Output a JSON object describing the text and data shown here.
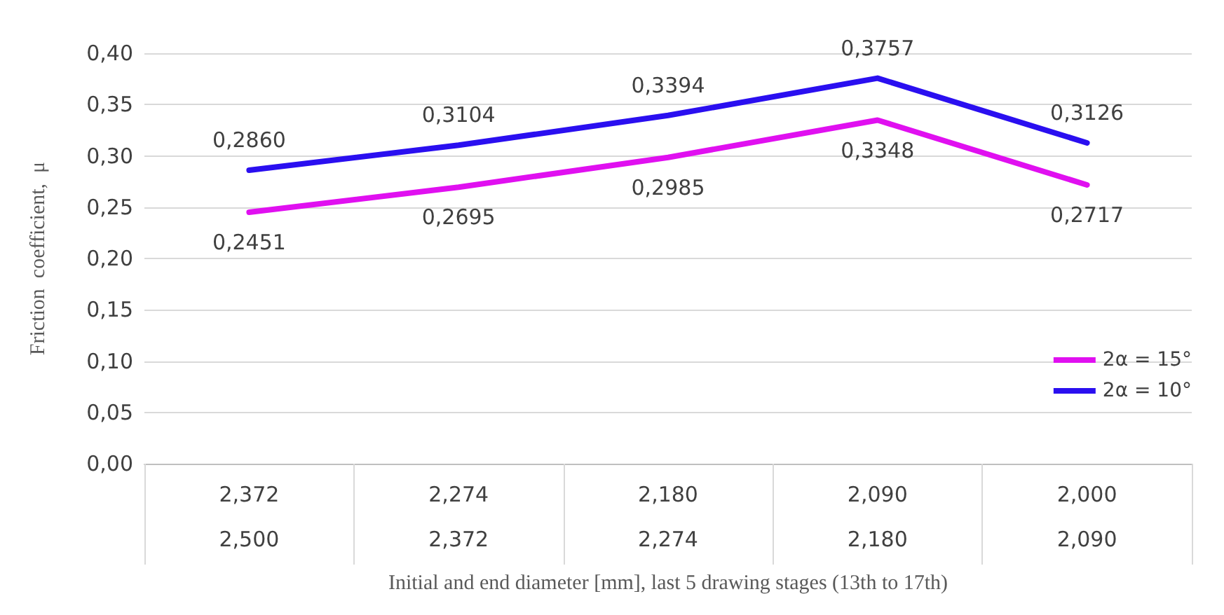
{
  "chart_data": {
    "type": "line",
    "xlabel": "Initial and end diameter [mm], last 5 drawing stages (13th to 17th)",
    "ylabel": "Friction  coefficient,  μ",
    "categories": [
      "2,372\n\n2,500",
      "2,274\n\n2,372",
      "2,180\n\n2,274",
      "2,090\n\n2,180",
      "2,000\n\n2,090"
    ],
    "series": [
      {
        "name": "2α = 15°",
        "color": "#e010f0",
        "values": [
          0.2451,
          0.2695,
          0.2985,
          0.3348,
          0.2717
        ],
        "value_labels": [
          "0,2451",
          "0,2695",
          "0,2985",
          "0,3348",
          "0,2717"
        ]
      },
      {
        "name": "2α = 10°",
        "color": "#2a0ff0",
        "values": [
          0.286,
          0.3104,
          0.3394,
          0.3757,
          0.3126
        ],
        "value_labels": [
          "0,2860",
          "0,3104",
          "0,3394",
          "0,3757",
          "0,3126"
        ]
      }
    ],
    "ylim": [
      0,
      0.4
    ],
    "yticks": [
      {
        "value": 0,
        "label": "0,00"
      },
      {
        "value": 0.05,
        "label": "0,05"
      },
      {
        "value": 0.1,
        "label": "0,10"
      },
      {
        "value": 0.15,
        "label": "0,15"
      },
      {
        "value": 0.2,
        "label": "0,20"
      },
      {
        "value": 0.25,
        "label": "0,25"
      },
      {
        "value": 0.3,
        "label": "0,30"
      },
      {
        "value": 0.35,
        "label": "0,35"
      },
      {
        "value": 0.4,
        "label": "0,40"
      }
    ],
    "grid": "y",
    "legend": "bottom right",
    "marker": "none",
    "line_style": "solid"
  }
}
